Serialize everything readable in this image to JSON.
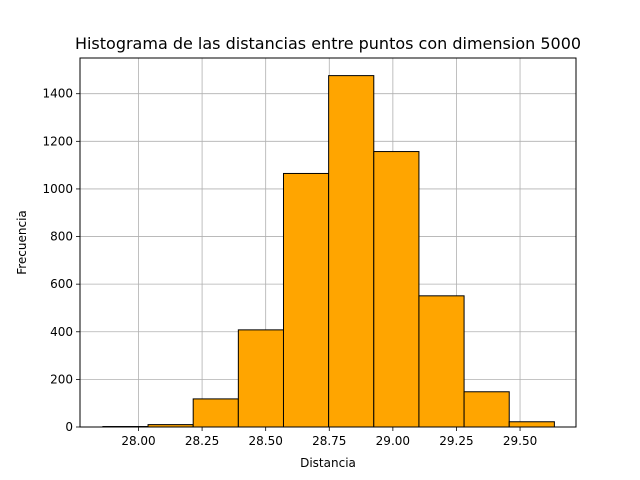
{
  "chart_data": {
    "type": "bar",
    "title": "Histograma de las distancias entre puntos con dimension 5000",
    "xlabel": "Distancia",
    "ylabel": "Frecuencia",
    "bin_edges": [
      27.86,
      28.0375,
      28.215,
      28.3925,
      28.57,
      28.7475,
      28.925,
      29.1025,
      29.28,
      29.4575,
      29.635
    ],
    "values": [
      2,
      10,
      118,
      408,
      1065,
      1476,
      1157,
      551,
      148,
      22
    ],
    "xlim": [
      27.77,
      29.72
    ],
    "ylim": [
      0,
      1550
    ],
    "xticks": [
      28.0,
      28.25,
      28.5,
      28.75,
      29.0,
      29.25,
      29.5
    ],
    "xtick_labels": [
      "28.00",
      "28.25",
      "28.50",
      "28.75",
      "29.00",
      "29.25",
      "29.50"
    ],
    "yticks": [
      0,
      200,
      400,
      600,
      800,
      1000,
      1200,
      1400
    ],
    "ytick_labels": [
      "0",
      "200",
      "400",
      "600",
      "800",
      "1000",
      "1200",
      "1400"
    ],
    "grid": true,
    "bar_color": "#ffa500",
    "edge_color": "#000000"
  }
}
